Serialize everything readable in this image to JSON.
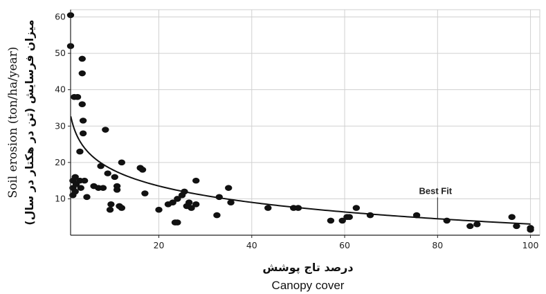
{
  "chart_data": {
    "type": "scatter",
    "xlabel_fa": "درصد تاج پوشش",
    "xlabel_en": "Canopy cover",
    "ylabel_en": "Soil erosion (ton/ha/year)",
    "ylabel_fa": "میزان فرسایش (تن در هکتار در سال)",
    "xlim": [
      1,
      102
    ],
    "ylim": [
      0,
      62
    ],
    "x_ticks": [
      20,
      40,
      60,
      80,
      100
    ],
    "y_ticks": [
      10,
      20,
      30,
      40,
      50,
      60
    ],
    "grid": true,
    "annotation": {
      "text": "Best Fit",
      "x": 80,
      "y": 4.1
    },
    "fit": {
      "type": "logarithmic",
      "a": 33.0,
      "b": -6.5
    },
    "points": [
      {
        "x": 1,
        "y": 60.5
      },
      {
        "x": 1,
        "y": 52
      },
      {
        "x": 1.5,
        "y": 15
      },
      {
        "x": 1.5,
        "y": 13
      },
      {
        "x": 1.5,
        "y": 11
      },
      {
        "x": 1.8,
        "y": 38
      },
      {
        "x": 2,
        "y": 16
      },
      {
        "x": 2,
        "y": 12
      },
      {
        "x": 2.2,
        "y": 14
      },
      {
        "x": 2.5,
        "y": 38
      },
      {
        "x": 3,
        "y": 23
      },
      {
        "x": 3,
        "y": 15
      },
      {
        "x": 3.2,
        "y": 13
      },
      {
        "x": 3.5,
        "y": 44.5
      },
      {
        "x": 3.5,
        "y": 48.5
      },
      {
        "x": 3.5,
        "y": 36
      },
      {
        "x": 3.7,
        "y": 31.5
      },
      {
        "x": 3.7,
        "y": 28
      },
      {
        "x": 4,
        "y": 15
      },
      {
        "x": 4.5,
        "y": 10.5
      },
      {
        "x": 6,
        "y": 13.5
      },
      {
        "x": 7,
        "y": 13
      },
      {
        "x": 7.5,
        "y": 19
      },
      {
        "x": 8,
        "y": 13
      },
      {
        "x": 8.5,
        "y": 29
      },
      {
        "x": 9,
        "y": 17
      },
      {
        "x": 9.5,
        "y": 7
      },
      {
        "x": 9.7,
        "y": 8.5
      },
      {
        "x": 10.5,
        "y": 16
      },
      {
        "x": 11,
        "y": 13.5
      },
      {
        "x": 11,
        "y": 12.5
      },
      {
        "x": 11.5,
        "y": 8
      },
      {
        "x": 12,
        "y": 7.5
      },
      {
        "x": 12,
        "y": 20
      },
      {
        "x": 16,
        "y": 18.5
      },
      {
        "x": 16.5,
        "y": 18
      },
      {
        "x": 17,
        "y": 11.5
      },
      {
        "x": 20,
        "y": 7
      },
      {
        "x": 22,
        "y": 8.5
      },
      {
        "x": 23,
        "y": 9
      },
      {
        "x": 23.5,
        "y": 3.5
      },
      {
        "x": 24,
        "y": 3.5
      },
      {
        "x": 24,
        "y": 10
      },
      {
        "x": 25,
        "y": 11
      },
      {
        "x": 25.5,
        "y": 12
      },
      {
        "x": 26,
        "y": 8
      },
      {
        "x": 26.5,
        "y": 9
      },
      {
        "x": 27,
        "y": 7.5
      },
      {
        "x": 28,
        "y": 8.5
      },
      {
        "x": 28,
        "y": 15
      },
      {
        "x": 32.5,
        "y": 5.5
      },
      {
        "x": 33,
        "y": 10.5
      },
      {
        "x": 35,
        "y": 13
      },
      {
        "x": 35.5,
        "y": 9
      },
      {
        "x": 43.5,
        "y": 7.5
      },
      {
        "x": 49,
        "y": 7.5
      },
      {
        "x": 50,
        "y": 7.5
      },
      {
        "x": 57,
        "y": 4
      },
      {
        "x": 59.5,
        "y": 4
      },
      {
        "x": 60.5,
        "y": 5
      },
      {
        "x": 61,
        "y": 5
      },
      {
        "x": 62.5,
        "y": 7.5
      },
      {
        "x": 65.5,
        "y": 5.5
      },
      {
        "x": 75.5,
        "y": 5.5
      },
      {
        "x": 82,
        "y": 4
      },
      {
        "x": 87,
        "y": 2.5
      },
      {
        "x": 88.5,
        "y": 3
      },
      {
        "x": 96,
        "y": 5
      },
      {
        "x": 97,
        "y": 2.5
      },
      {
        "x": 100,
        "y": 2
      },
      {
        "x": 100,
        "y": 1.5
      }
    ]
  }
}
